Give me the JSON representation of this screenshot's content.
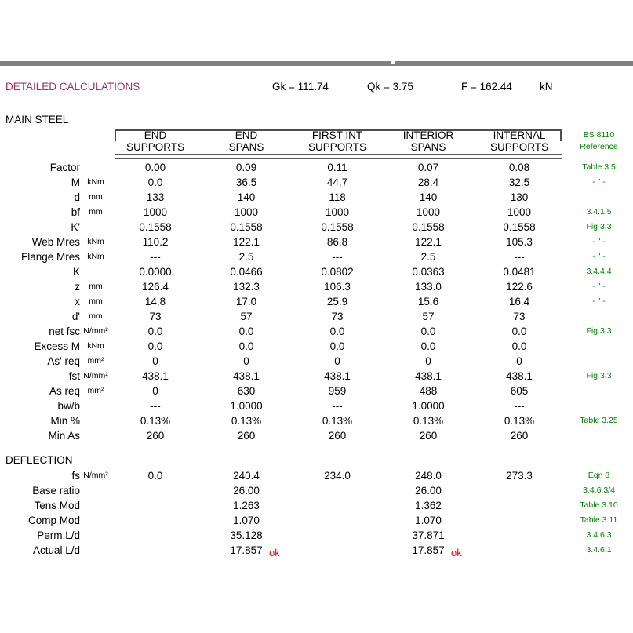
{
  "titlebar": {
    "title": "DETAILED CALCULATIONS",
    "gk": "Gk = 111.74",
    "qk": "Qk = 3.75",
    "f": "F = 162.44",
    "force_unit": "kN"
  },
  "main_steel": {
    "heading": "MAIN STEEL",
    "columns_line1": [
      "END",
      "END",
      "FIRST INT",
      "INTERIOR",
      "INTERNAL"
    ],
    "columns_line2": [
      "SUPPORTS",
      "SPANS",
      "SUPPORTS",
      "SPANS",
      "SUPPORTS"
    ],
    "ref_header_line1": "BS 8110",
    "ref_header_line2": "Reference",
    "rows": [
      {
        "label": "Factor",
        "unit": "",
        "values": [
          "0.00",
          "0.09",
          "0.11",
          "0.07",
          "0.08"
        ],
        "ref": "Table 3.5"
      },
      {
        "label": "M",
        "unit": "kNm",
        "values": [
          "0.0",
          "36.5",
          "44.7",
          "28.4",
          "32.5"
        ],
        "ref": "- \" -"
      },
      {
        "label": "d",
        "unit": "mm",
        "values": [
          "133",
          "140",
          "118",
          "140",
          "130"
        ],
        "ref": ""
      },
      {
        "label": "bf",
        "unit": "mm",
        "values": [
          "1000",
          "1000",
          "1000",
          "1000",
          "1000"
        ],
        "ref": "3.4.1.5"
      },
      {
        "label": "K'",
        "unit": "",
        "values": [
          "0.1558",
          "0.1558",
          "0.1558",
          "0.1558",
          "0.1558"
        ],
        "ref": "Fig 3.3"
      },
      {
        "label": "Web Mres",
        "unit": "kNm",
        "values": [
          "110.2",
          "122.1",
          "86.8",
          "122.1",
          "105.3"
        ],
        "ref": "- \" -"
      },
      {
        "label": "Flange Mres",
        "unit": "kNm",
        "values": [
          "---",
          "2.5",
          "---",
          "2.5",
          "---"
        ],
        "ref": "- \" -"
      },
      {
        "label": "K",
        "unit": "",
        "values": [
          "0.0000",
          "0.0466",
          "0.0802",
          "0.0363",
          "0.0481"
        ],
        "ref": "3.4.4.4"
      },
      {
        "label": "z",
        "unit": "mm",
        "values": [
          "126.4",
          "132.3",
          "106.3",
          "133.0",
          "122.6"
        ],
        "ref": "- \" -"
      },
      {
        "label": "x",
        "unit": "mm",
        "values": [
          "14.8",
          "17.0",
          "25.9",
          "15.6",
          "16.4"
        ],
        "ref": "- \" -"
      },
      {
        "label": "d'",
        "unit": "mm",
        "values": [
          "73",
          "57",
          "73",
          "57",
          "73"
        ],
        "ref": ""
      },
      {
        "label": "net fsc",
        "unit": "N/mm²",
        "values": [
          "0.0",
          "0.0",
          "0.0",
          "0.0",
          "0.0"
        ],
        "ref": "Fig 3.3"
      },
      {
        "label": "Excess M",
        "unit": "kNm",
        "values": [
          "0.0",
          "0.0",
          "0.0",
          "0.0",
          "0.0"
        ],
        "ref": ""
      },
      {
        "label": "As' req",
        "unit": "mm²",
        "values": [
          "0",
          "0",
          "0",
          "0",
          "0"
        ],
        "ref": ""
      },
      {
        "label": "fst",
        "unit": "N/mm²",
        "values": [
          "438.1",
          "438.1",
          "438.1",
          "438.1",
          "438.1"
        ],
        "ref": "Fig 3.3"
      },
      {
        "label": "As req",
        "unit": "mm²",
        "values": [
          "0",
          "630",
          "959",
          "488",
          "605"
        ],
        "ref": ""
      },
      {
        "label": "bw/b",
        "unit": "",
        "values": [
          "---",
          "1.0000",
          "---",
          "1.0000",
          "---"
        ],
        "ref": ""
      },
      {
        "label": "Min %",
        "unit": "",
        "values": [
          "0.13%",
          "0.13%",
          "0.13%",
          "0.13%",
          "0.13%"
        ],
        "ref": "Table 3.25"
      },
      {
        "label": "Min As",
        "unit": "",
        "values": [
          "260",
          "260",
          "260",
          "260",
          "260"
        ],
        "ref": ""
      }
    ]
  },
  "deflection": {
    "heading": "DEFLECTION",
    "ok_label": "ok",
    "rows": [
      {
        "label": "fs",
        "unit": "N/mm²",
        "values": [
          "0.0",
          "240.4",
          "234.0",
          "248.0",
          "273.3"
        ],
        "ref": "Eqn 8"
      },
      {
        "label": "Base ratio",
        "unit": "",
        "values": [
          "",
          "26.00",
          "",
          "26.00",
          ""
        ],
        "ref": "3.4.6.3/4"
      },
      {
        "label": "Tens Mod",
        "unit": "",
        "values": [
          "",
          "1.263",
          "",
          "1.362",
          ""
        ],
        "ref": "Table 3.10"
      },
      {
        "label": "Comp Mod",
        "unit": "",
        "values": [
          "",
          "1.070",
          "",
          "1.070",
          ""
        ],
        "ref": "Table 3.11"
      },
      {
        "label": "Perm L/d",
        "unit": "",
        "values": [
          "",
          "35.128",
          "",
          "37.871",
          ""
        ],
        "ref": "3.4.6.3"
      },
      {
        "label": "Actual L/d",
        "unit": "",
        "values": [
          "",
          "17.857",
          "",
          "17.857",
          ""
        ],
        "ref": "3.4.6.1",
        "ok_cols": [
          1,
          3
        ]
      }
    ]
  },
  "colors": {
    "title": "#993366",
    "reference": "#008000",
    "ok": "#ff0000",
    "divider_bar": "#7f7f7f"
  }
}
